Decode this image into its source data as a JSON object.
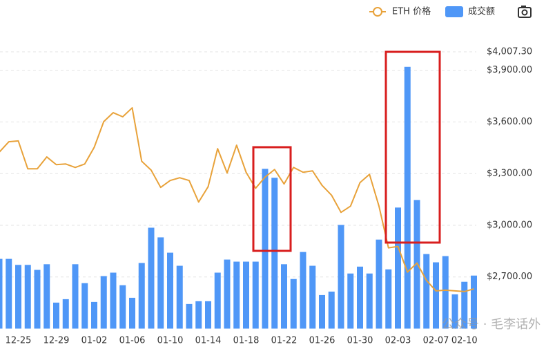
{
  "chart_data": {
    "type": "bar_line",
    "categories": [
      null,
      null,
      "12-25",
      null,
      null,
      null,
      "12-29",
      null,
      null,
      null,
      "01-02",
      null,
      null,
      null,
      "01-06",
      null,
      null,
      null,
      "01-10",
      null,
      null,
      null,
      "01-14",
      null,
      null,
      null,
      "01-18",
      null,
      null,
      null,
      "01-22",
      null,
      null,
      null,
      "01-26",
      null,
      null,
      null,
      "01-30",
      null,
      null,
      null,
      "02-03",
      null,
      null,
      null,
      "02-07",
      null,
      null,
      "02-10",
      null
    ],
    "series": [
      {
        "name": "ETH 价格",
        "type": "line",
        "color": "#e8a23a",
        "values": [
          3425,
          3485,
          3490,
          3328,
          3328,
          3397,
          3352,
          3356,
          3336,
          3356,
          3453,
          3602,
          3654,
          3630,
          3682,
          3372,
          3320,
          3220,
          3260,
          3276,
          3260,
          3135,
          3224,
          3445,
          3304,
          3465,
          3308,
          3215,
          3280,
          3324,
          3240,
          3336,
          3308,
          3316,
          3232,
          3175,
          3075,
          3111,
          3248,
          3296,
          3111,
          2869,
          2877,
          2728,
          2781,
          2680,
          2619,
          2623,
          2619,
          2615,
          2631
        ]
      },
      {
        "name": "成交额",
        "type": "bar",
        "color": "#4f97f7",
        "values": [
          2805,
          2805,
          2770,
          2770,
          2741,
          2774,
          2551,
          2571,
          2774,
          2664,
          2555,
          2705,
          2725,
          2652,
          2579,
          2781,
          2986,
          2930,
          2841,
          2765,
          2543,
          2559,
          2559,
          2725,
          2801,
          2789,
          2789,
          2789,
          3328,
          3276,
          2774,
          2688,
          2845,
          2765,
          2595,
          2615,
          3002,
          2720,
          2760,
          2720,
          2917,
          2744,
          3103,
          3920,
          3147,
          2833,
          2785,
          2821,
          2599,
          2672,
          2708
        ]
      }
    ],
    "ylim": [
      2400,
      4007.3
    ],
    "yticks": [
      {
        "value": 2700,
        "label": "$2,700.00"
      },
      {
        "value": 3000,
        "label": "$3,000.00"
      },
      {
        "value": 3300,
        "label": "$3,300.00"
      },
      {
        "value": 3600,
        "label": "$3,600.00"
      },
      {
        "value": 3900,
        "label": "$3,900.00"
      },
      {
        "value": 4007.3,
        "label": "$4,007.30"
      }
    ],
    "grid": true,
    "watermark": "公众号 · 毛李话外"
  }
}
